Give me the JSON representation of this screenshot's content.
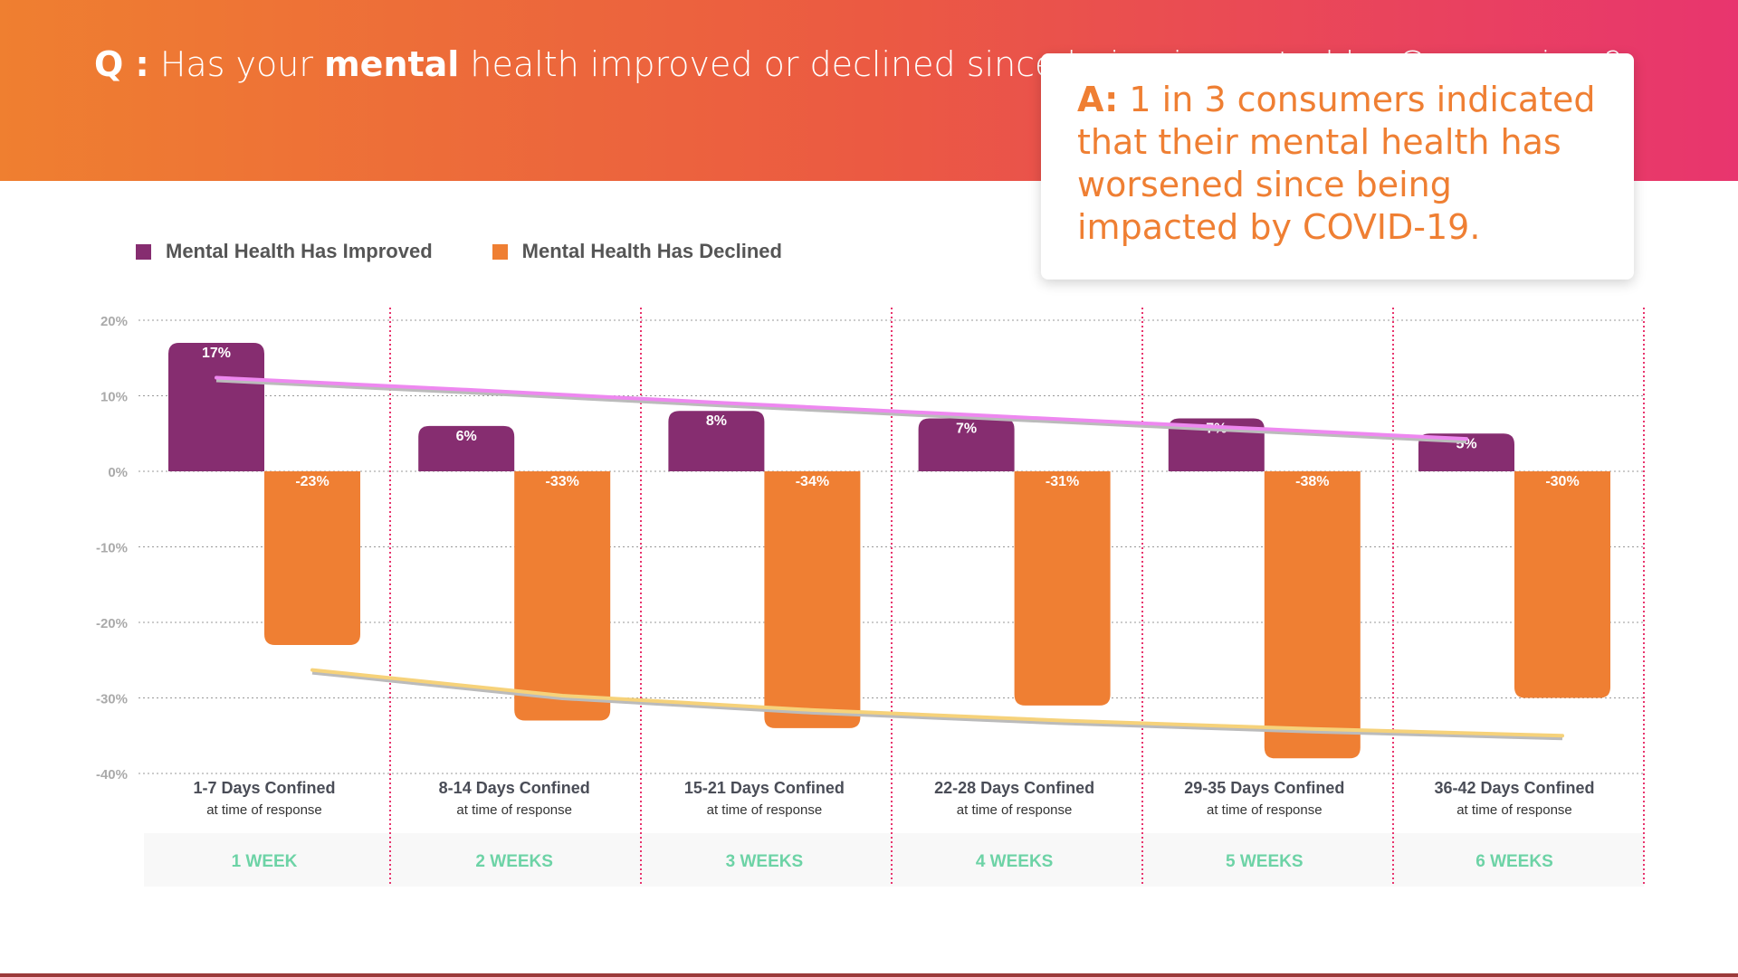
{
  "header": {
    "q_prefix": "Q :",
    "q_part1": " Has your ",
    "q_bold": "mental",
    "q_part2": " health improved or declined since being impacted by Coronavirus?"
  },
  "answer": {
    "prefix": "A:",
    "text": " 1 in 3 consumers indicated that their mental health has worsened since being impacted by COVID-19."
  },
  "colors": {
    "improved": "#862d70",
    "declined": "#ef7f33",
    "week": "#6dd3a6",
    "improved_trend": "#ee88f0",
    "declined_trend": "#f6d27a",
    "divider": "#e8356e"
  },
  "chart_data": {
    "type": "bar",
    "categories": [
      "1-7 Days Confined",
      "8-14 Days Confined",
      "15-21  Days Confined",
      "22-28 Days Confined",
      "29-35 Days Confined",
      "36-42 Days Confined"
    ],
    "category_sublabel": "at time of response",
    "weeks": [
      "1 WEEK",
      "2 WEEKS",
      "3 WEEKS",
      "4 WEEKS",
      "5 WEEKS",
      "6 WEEKS"
    ],
    "series": [
      {
        "name": "Mental Health Has Improved",
        "values": [
          17,
          6,
          8,
          7,
          7,
          5
        ],
        "labels": [
          "17%",
          "6%",
          "8%",
          "7%",
          "7%",
          "5%"
        ]
      },
      {
        "name": "Mental Health Has Declined",
        "values": [
          -23,
          -33,
          -34,
          -31,
          -38,
          -30
        ],
        "labels": [
          "-23%",
          "-33%",
          "-34%",
          "-31%",
          "-38%",
          "-30%"
        ]
      }
    ],
    "trendlines": [
      {
        "series": "Mental Health Has Improved",
        "values": [
          12.4,
          10.8,
          9.1,
          7.5,
          5.9,
          4.3
        ]
      },
      {
        "series": "Mental Health Has Declined",
        "values": [
          -26.3,
          -29.7,
          -31.6,
          -33.0,
          -34.1,
          -35.0
        ]
      }
    ],
    "yticks": [
      20,
      10,
      0,
      -10,
      -20,
      -30,
      -40
    ],
    "ytick_labels": [
      "20%",
      "10%",
      "0%",
      "-10%",
      "-20%",
      "-30%",
      "-40%"
    ],
    "ylim": [
      -40,
      20
    ],
    "grid": true,
    "legend": "top-left"
  }
}
